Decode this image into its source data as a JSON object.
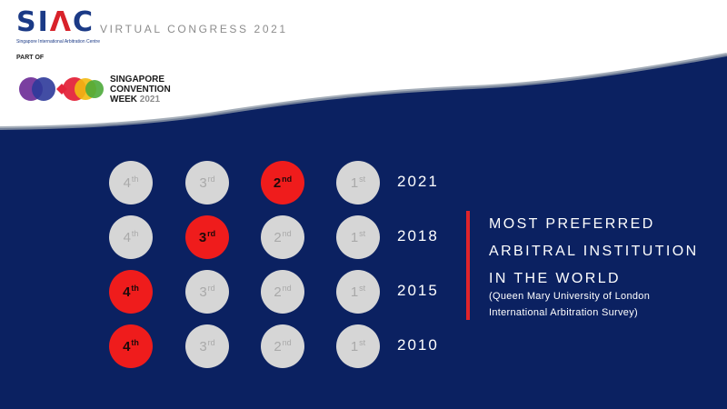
{
  "header": {
    "logo_text_main": "SI",
    "logo_text_accent": "Λ",
    "logo_text_end": "C",
    "logo_subtitle": "Singapore International Arbitration Centre",
    "title": "VIRTUAL CONGRESS 2021",
    "part_of": "PART OF",
    "scw_line1": "SINGAPORE",
    "scw_line2": "CONVENTION",
    "scw_line3": "WEEK",
    "scw_year": "2021"
  },
  "colors": {
    "navy": "#0b2161",
    "highlight": "#ef1c1c",
    "inactive": "#d6d6d6",
    "accent_bar": "#e0242b"
  },
  "rankings": {
    "columns": [
      {
        "num": "4",
        "suffix": "th"
      },
      {
        "num": "3",
        "suffix": "rd"
      },
      {
        "num": "2",
        "suffix": "nd"
      },
      {
        "num": "1",
        "suffix": "st"
      }
    ],
    "rows": [
      {
        "year": "2021",
        "highlight_index": 2
      },
      {
        "year": "2018",
        "highlight_index": 1
      },
      {
        "year": "2015",
        "highlight_index": 0
      },
      {
        "year": "2010",
        "highlight_index": 0
      }
    ]
  },
  "headline": {
    "line1": "MOST PREFERRED",
    "line2": "ARBITRAL INSTITUTION",
    "line3": "IN THE WORLD",
    "source_line1": "(Queen Mary University of London",
    "source_line2": "International Arbitration Survey)"
  }
}
